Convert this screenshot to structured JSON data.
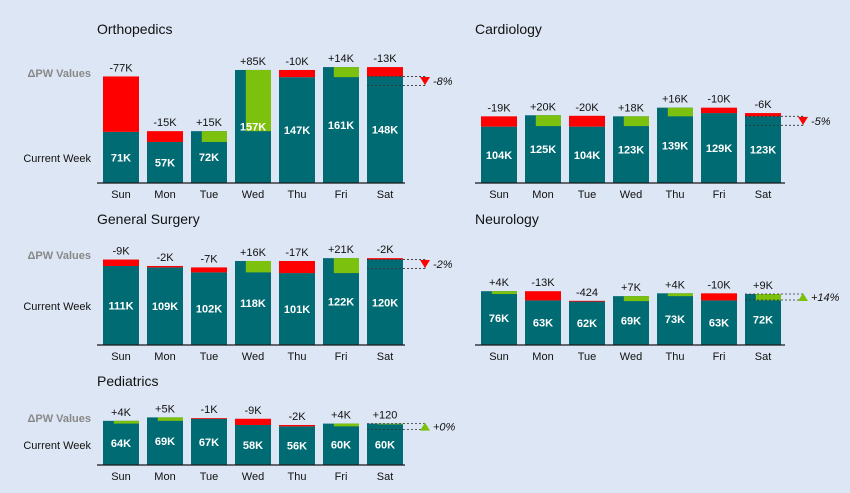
{
  "row_labels": {
    "delta": "ΔPW Values",
    "current": "Current Week"
  },
  "colors": {
    "bar": "#006b73",
    "increase": "#7dc10f",
    "decrease": "#ff0000",
    "axis": "#1a1a1a",
    "background": "#dde6f4"
  },
  "chart_data": [
    {
      "type": "bar",
      "title": "Orthopedics",
      "categories": [
        "Sun",
        "Mon",
        "Tue",
        "Wed",
        "Thu",
        "Fri",
        "Sat"
      ],
      "current_values": [
        "71K",
        "57K",
        "72K",
        "157K",
        "147K",
        "161K",
        "148K"
      ],
      "delta_values": [
        "-77K",
        "-15K",
        "+15K",
        "+85K",
        "-10K",
        "+14K",
        "-13K"
      ],
      "total_delta": "-8%",
      "total_direction": "down",
      "series": [
        {
          "name": "Current Week",
          "values": [
            71,
            57,
            72,
            157,
            147,
            161,
            148
          ]
        },
        {
          "name": "ΔPW Values",
          "values": [
            -77,
            -15,
            15,
            85,
            -10,
            14,
            -13
          ]
        }
      ]
    },
    {
      "type": "bar",
      "title": "Cardiology",
      "categories": [
        "Sun",
        "Mon",
        "Tue",
        "Wed",
        "Thu",
        "Fri",
        "Sat"
      ],
      "current_values": [
        "104K",
        "125K",
        "104K",
        "123K",
        "139K",
        "129K",
        "123K"
      ],
      "delta_values": [
        "-19K",
        "+20K",
        "-20K",
        "+18K",
        "+16K",
        "-10K",
        "-6K"
      ],
      "total_delta": "-5%",
      "total_direction": "down",
      "series": [
        {
          "name": "Current Week",
          "values": [
            104,
            125,
            104,
            123,
            139,
            129,
            123
          ]
        },
        {
          "name": "ΔPW Values",
          "values": [
            -19,
            20,
            -20,
            18,
            16,
            -10,
            -6
          ]
        }
      ]
    },
    {
      "type": "bar",
      "title": "General Surgery",
      "categories": [
        "Sun",
        "Mon",
        "Tue",
        "Wed",
        "Thu",
        "Fri",
        "Sat"
      ],
      "current_values": [
        "111K",
        "109K",
        "102K",
        "118K",
        "101K",
        "122K",
        "120K"
      ],
      "delta_values": [
        "-9K",
        "-2K",
        "-7K",
        "+16K",
        "-17K",
        "+21K",
        "-2K"
      ],
      "total_delta": "-2%",
      "total_direction": "down",
      "series": [
        {
          "name": "Current Week",
          "values": [
            111,
            109,
            102,
            118,
            101,
            122,
            120
          ]
        },
        {
          "name": "ΔPW Values",
          "values": [
            -9,
            -2,
            -7,
            16,
            -17,
            21,
            -2
          ]
        }
      ]
    },
    {
      "type": "bar",
      "title": "Neurology",
      "categories": [
        "Sun",
        "Mon",
        "Tue",
        "Wed",
        "Thu",
        "Fri",
        "Sat"
      ],
      "current_values": [
        "76K",
        "63K",
        "62K",
        "69K",
        "73K",
        "63K",
        "72K"
      ],
      "delta_values": [
        "+4K",
        "-13K",
        "-424",
        "+7K",
        "+4K",
        "-10K",
        "+9K"
      ],
      "total_delta": "+14%",
      "total_direction": "up",
      "series": [
        {
          "name": "Current Week",
          "values": [
            76,
            63,
            62,
            69,
            73,
            63,
            72
          ]
        },
        {
          "name": "ΔPW Values",
          "values": [
            4,
            -13,
            -0.424,
            7,
            4,
            -10,
            9
          ]
        }
      ]
    },
    {
      "type": "bar",
      "title": "Pediatrics",
      "categories": [
        "Sun",
        "Mon",
        "Tue",
        "Wed",
        "Thu",
        "Fri",
        "Sat"
      ],
      "current_values": [
        "64K",
        "69K",
        "67K",
        "58K",
        "56K",
        "60K",
        "60K"
      ],
      "delta_values": [
        "+4K",
        "+5K",
        "-1K",
        "-9K",
        "-2K",
        "+4K",
        "+120"
      ],
      "total_delta": "+0%",
      "total_direction": "up",
      "series": [
        {
          "name": "Current Week",
          "values": [
            64,
            69,
            67,
            58,
            56,
            60,
            60
          ]
        },
        {
          "name": "ΔPW Values",
          "values": [
            4,
            5,
            -1,
            -9,
            -2,
            4,
            0.12
          ]
        }
      ]
    }
  ]
}
